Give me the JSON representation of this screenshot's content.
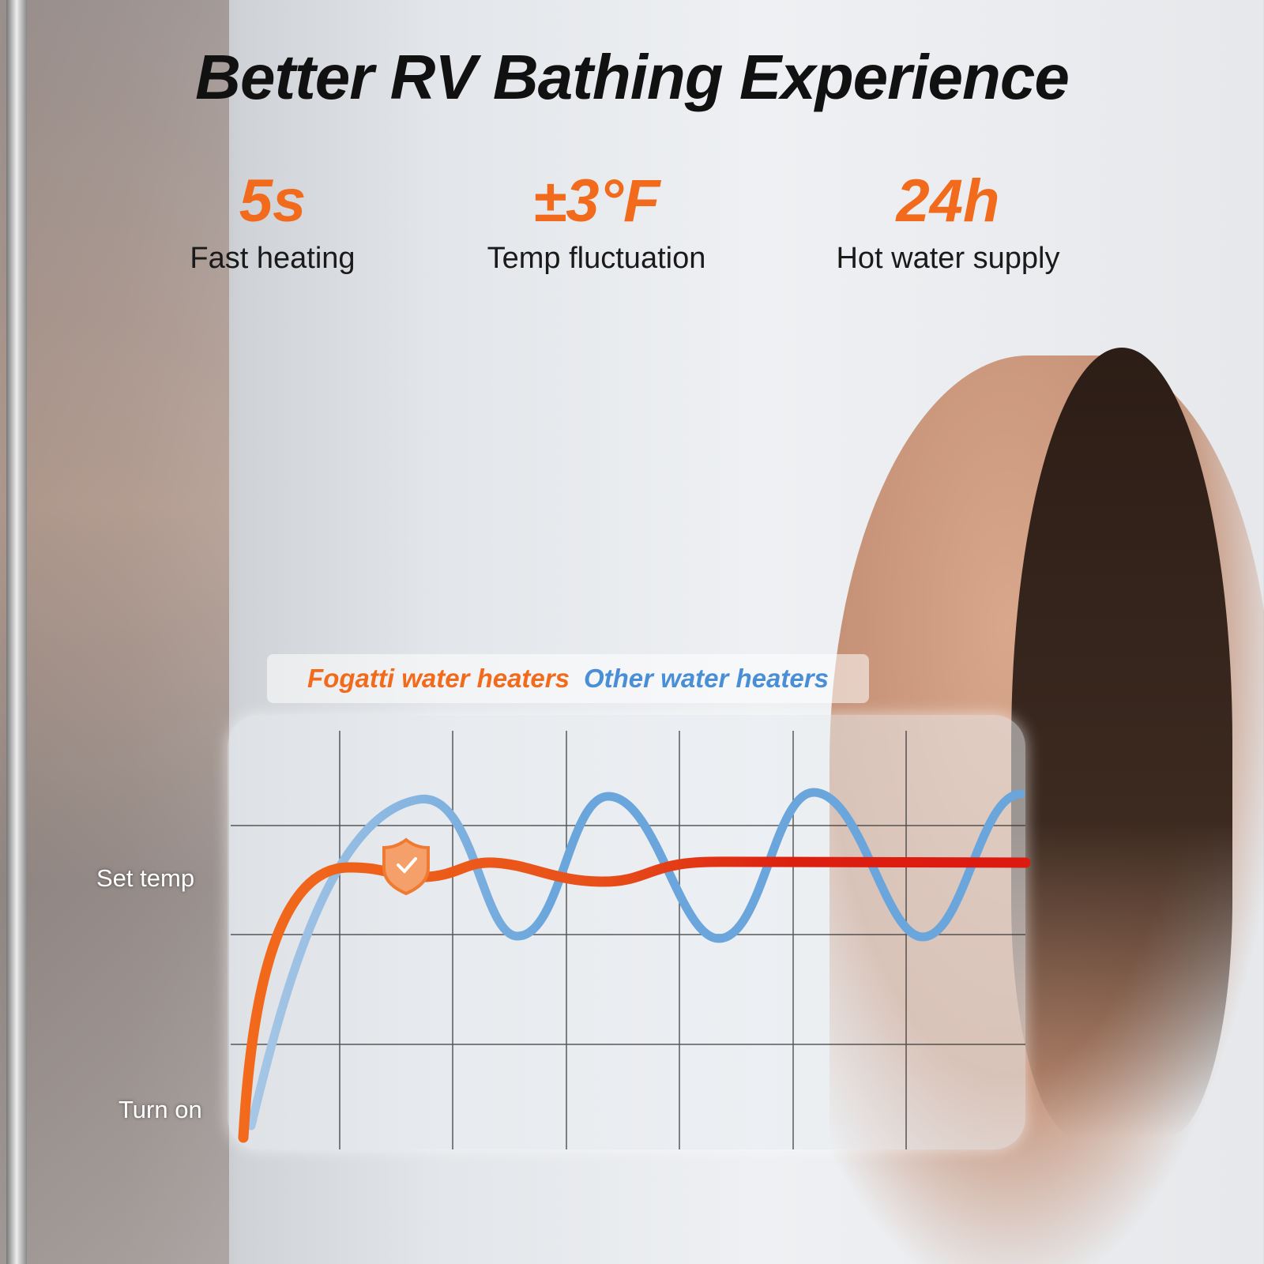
{
  "title": "Better RV Bathing Experience",
  "stats": [
    {
      "value": "5s",
      "label": "Fast heating"
    },
    {
      "value": "±3°F",
      "label": "Temp fluctuation"
    },
    {
      "value": "24h",
      "label": "Hot water supply"
    }
  ],
  "legend": {
    "fogatti": "Fogatti water heaters",
    "other": "Other water heaters"
  },
  "axis": {
    "set_temp": "Set temp",
    "turn_on": "Turn on"
  },
  "colors": {
    "accent": "#f26a1b",
    "fogatti_end": "#e0200f",
    "other": "#6aa6dc"
  },
  "icons": {
    "badge": "shield-check-icon"
  }
}
